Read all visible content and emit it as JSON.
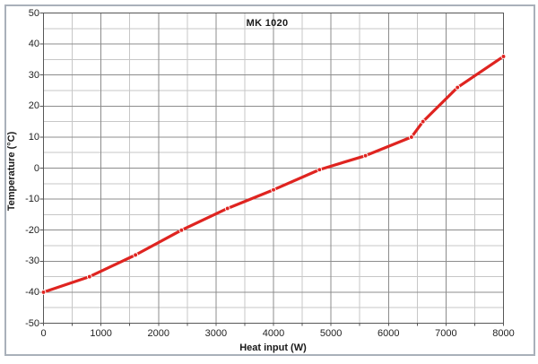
{
  "chart_data": {
    "type": "line",
    "title": "MK 1020",
    "xlabel": "Heat input (W)",
    "ylabel": "Temperature (°C)",
    "x": [
      0,
      800,
      1600,
      2400,
      3200,
      4000,
      4800,
      5600,
      6400,
      6600,
      7200,
      8000
    ],
    "series": [
      {
        "name": "MK 1020",
        "values": [
          -40,
          -35,
          -28,
          -20,
          -13,
          -7,
          -0.5,
          4,
          10,
          15,
          26,
          36
        ]
      }
    ],
    "xlim": [
      0,
      8000
    ],
    "ylim": [
      -50,
      50
    ],
    "x_tick_step": 1000,
    "x_minor_step": 500,
    "y_tick_step": 10,
    "y_minor_step": 5,
    "x_tick_values": [
      0,
      1000,
      2000,
      3000,
      4000,
      5000,
      6000,
      7000,
      8000
    ],
    "x_ticks": [
      "0",
      "1000",
      "2000",
      "3000",
      "4000",
      "5000",
      "6000",
      "7000",
      "8000"
    ],
    "y_tick_values": [
      50,
      40,
      30,
      20,
      10,
      0,
      -10,
      -20,
      -30,
      -40,
      -50
    ],
    "y_ticks": [
      "50",
      "40",
      "30",
      "20",
      "10",
      "0",
      "-10",
      "-20",
      "-30",
      "-40",
      "-50"
    ],
    "grid": true,
    "legend_position": "none",
    "marker": "circle",
    "colors": {
      "line": "#df2420",
      "marker_outline": "#ffffff",
      "major_grid": "#8c8c8c",
      "minor_grid": "#c7c7c7",
      "plot_border": "#565656",
      "tick": "#565656",
      "figure_border": "#a9b0ba",
      "tick_label": "#1f1f1f",
      "background": "#ffffff"
    }
  }
}
